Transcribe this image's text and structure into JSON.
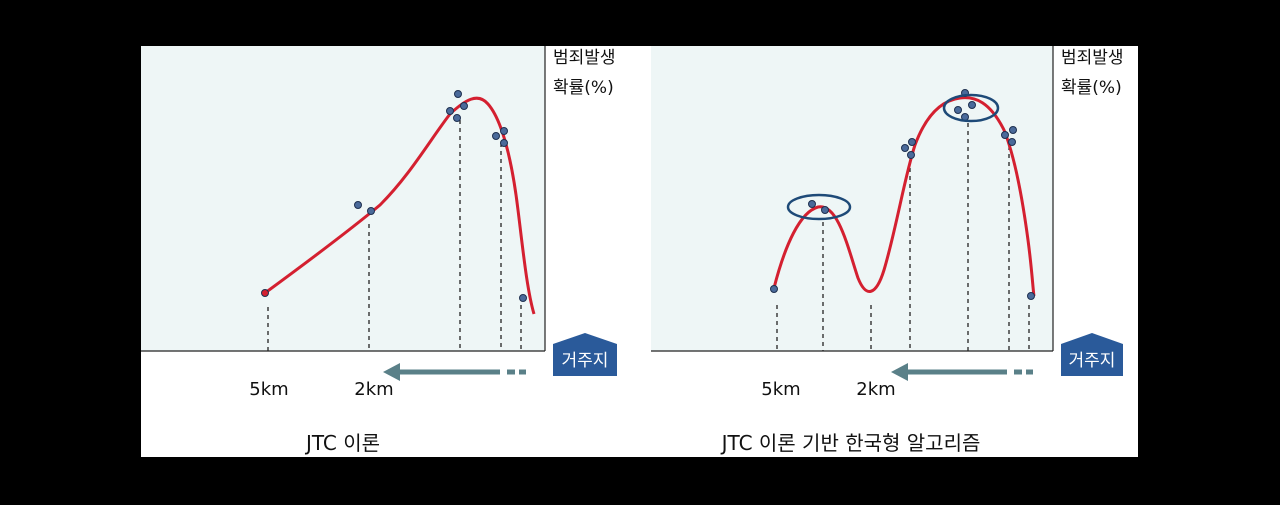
{
  "y_axis_label": [
    "범죄발생",
    "확률(%)"
  ],
  "home_label": "거주지",
  "panels": [
    {
      "title": "JTC 이론",
      "distance_labels": [
        "5km",
        "2km"
      ]
    },
    {
      "title": "JTC 이론 기반 한국형 알고리즘",
      "distance_labels": [
        "5km",
        "2km"
      ]
    }
  ],
  "colors": {
    "background": "#000000",
    "panel": "#ffffff",
    "plot_area": "#eef6f6",
    "curve": "#d42030",
    "point_fill": "#4a6a9a",
    "point_stroke": "#1e3050",
    "highlight_ellipse": "#1e4a78",
    "arrow": "#5a8088",
    "home_badge": "#2a5a9a",
    "text": "#111111"
  }
}
